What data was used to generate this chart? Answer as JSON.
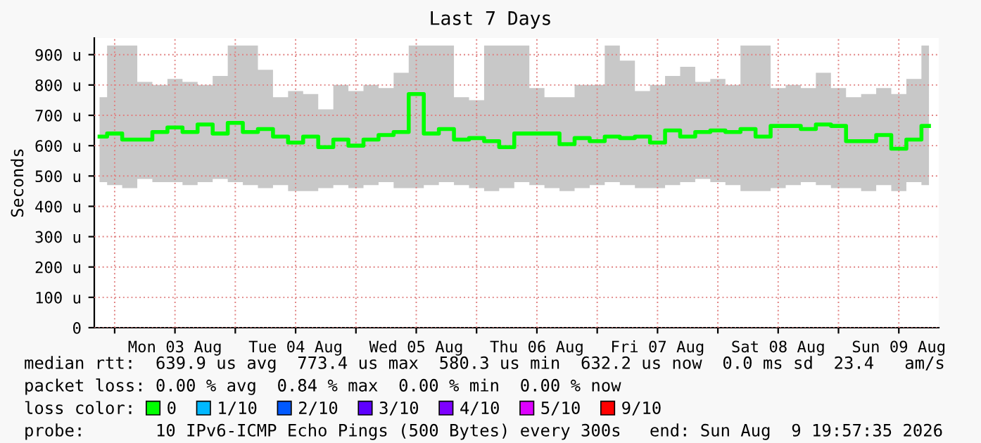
{
  "chart_data": {
    "type": "step",
    "title": "Last 7 Days",
    "ylabel": "Seconds",
    "x": [
      "2026-08-02T21:00",
      "2026-08-03T00:00",
      "2026-08-03T03:00",
      "2026-08-03T06:00",
      "2026-08-03T09:00",
      "2026-08-03T12:00",
      "2026-08-03T15:00",
      "2026-08-03T18:00",
      "2026-08-03T21:00",
      "2026-08-04T00:00",
      "2026-08-04T03:00",
      "2026-08-04T06:00",
      "2026-08-04T09:00",
      "2026-08-04T12:00",
      "2026-08-04T15:00",
      "2026-08-04T18:00",
      "2026-08-04T21:00",
      "2026-08-05T00:00",
      "2026-08-05T03:00",
      "2026-08-05T06:00",
      "2026-08-05T09:00",
      "2026-08-05T12:00",
      "2026-08-05T15:00",
      "2026-08-05T18:00",
      "2026-08-05T21:00",
      "2026-08-06T00:00",
      "2026-08-06T03:00",
      "2026-08-06T06:00",
      "2026-08-06T09:00",
      "2026-08-06T12:00",
      "2026-08-06T15:00",
      "2026-08-06T18:00",
      "2026-08-06T21:00",
      "2026-08-07T00:00",
      "2026-08-07T03:00",
      "2026-08-07T06:00",
      "2026-08-07T09:00",
      "2026-08-07T12:00",
      "2026-08-07T15:00",
      "2026-08-07T18:00",
      "2026-08-07T21:00",
      "2026-08-08T00:00",
      "2026-08-08T03:00",
      "2026-08-08T06:00",
      "2026-08-08T09:00",
      "2026-08-08T12:00",
      "2026-08-08T15:00",
      "2026-08-08T18:00",
      "2026-08-08T21:00",
      "2026-08-09T00:00",
      "2026-08-09T03:00",
      "2026-08-09T06:00",
      "2026-08-09T09:00",
      "2026-08-09T12:00",
      "2026-08-09T15:00",
      "2026-08-09T18:00"
    ],
    "series": [
      {
        "name": "0",
        "color": "#00ff00",
        "values": [
          630,
          640,
          620,
          620,
          645,
          660,
          645,
          670,
          640,
          675,
          645,
          655,
          630,
          610,
          630,
          595,
          620,
          600,
          620,
          635,
          645,
          770,
          640,
          655,
          620,
          625,
          615,
          595,
          640,
          640,
          640,
          605,
          625,
          615,
          630,
          625,
          630,
          610,
          650,
          630,
          645,
          650,
          645,
          655,
          630,
          665,
          665,
          655,
          670,
          665,
          615,
          615,
          635,
          590,
          620,
          665
        ],
        "lower": [
          480,
          470,
          460,
          490,
          480,
          480,
          470,
          480,
          490,
          480,
          470,
          460,
          470,
          450,
          450,
          460,
          470,
          460,
          470,
          480,
          460,
          460,
          470,
          480,
          470,
          460,
          450,
          460,
          480,
          470,
          460,
          450,
          460,
          470,
          480,
          470,
          460,
          460,
          470,
          480,
          490,
          480,
          470,
          450,
          450,
          460,
          470,
          480,
          470,
          460,
          460,
          450,
          470,
          450,
          480,
          470
        ],
        "upper": [
          760,
          930,
          930,
          810,
          800,
          820,
          810,
          800,
          830,
          930,
          930,
          850,
          760,
          780,
          770,
          720,
          800,
          780,
          800,
          790,
          840,
          930,
          930,
          930,
          760,
          750,
          930,
          930,
          930,
          790,
          760,
          760,
          800,
          800,
          930,
          880,
          780,
          800,
          830,
          860,
          810,
          820,
          800,
          930,
          930,
          790,
          800,
          790,
          840,
          790,
          760,
          770,
          790,
          770,
          820,
          930
        ]
      },
      {
        "name": "1/10",
        "color": "#00b8ff",
        "values": [
          null,
          null,
          null,
          null,
          null,
          null,
          null,
          null,
          null,
          null,
          null,
          null,
          null,
          null,
          null,
          null,
          null,
          null,
          null,
          null,
          null,
          null,
          null,
          null,
          null,
          null,
          null,
          null,
          null,
          null,
          null,
          null,
          null,
          null,
          null,
          null,
          null,
          null,
          null,
          null,
          null,
          null,
          null,
          null,
          null,
          null,
          null,
          null,
          null,
          null,
          null,
          null,
          null,
          null,
          null,
          null
        ]
      },
      {
        "name": "2/10",
        "color": "#0059ff",
        "values": [
          null,
          null,
          null,
          null,
          null,
          null,
          null,
          null,
          null,
          null,
          null,
          null,
          null,
          null,
          null,
          null,
          null,
          null,
          null,
          null,
          null,
          null,
          null,
          null,
          null,
          null,
          null,
          null,
          null,
          null,
          null,
          null,
          null,
          null,
          null,
          null,
          null,
          null,
          null,
          null,
          null,
          null,
          null,
          null,
          null,
          null,
          null,
          null,
          null,
          null,
          null,
          null,
          null,
          null,
          null,
          null
        ]
      },
      {
        "name": "3/10",
        "color": "#5e00ff",
        "values": [
          null,
          null,
          null,
          null,
          null,
          null,
          null,
          null,
          null,
          null,
          null,
          null,
          null,
          null,
          null,
          null,
          null,
          null,
          null,
          null,
          null,
          null,
          null,
          null,
          null,
          null,
          null,
          null,
          null,
          null,
          null,
          null,
          null,
          null,
          null,
          null,
          null,
          null,
          null,
          null,
          null,
          null,
          null,
          null,
          null,
          null,
          null,
          null,
          null,
          null,
          null,
          null,
          null,
          null,
          null,
          null
        ]
      },
      {
        "name": "4/10",
        "color": "#7e00ff",
        "values": [
          null,
          null,
          null,
          null,
          null,
          null,
          null,
          null,
          null,
          null,
          null,
          null,
          null,
          null,
          null,
          null,
          null,
          null,
          null,
          null,
          null,
          null,
          null,
          null,
          null,
          null,
          null,
          null,
          null,
          null,
          null,
          null,
          null,
          null,
          null,
          null,
          null,
          null,
          null,
          null,
          null,
          null,
          null,
          null,
          null,
          null,
          null,
          null,
          null,
          null,
          null,
          null,
          null,
          null,
          null,
          null
        ]
      },
      {
        "name": "5/10",
        "color": "#dd00ff",
        "values": [
          null,
          null,
          null,
          null,
          null,
          null,
          null,
          null,
          null,
          null,
          null,
          null,
          null,
          null,
          null,
          null,
          null,
          null,
          null,
          null,
          null,
          null,
          null,
          null,
          null,
          null,
          null,
          null,
          null,
          null,
          null,
          null,
          null,
          null,
          null,
          null,
          null,
          null,
          null,
          null,
          null,
          null,
          null,
          null,
          null,
          null,
          null,
          null,
          null,
          null,
          null,
          null,
          null,
          null,
          null,
          null
        ]
      },
      {
        "name": "9/10",
        "color": "#ff0000",
        "values": [
          null,
          null,
          null,
          null,
          null,
          null,
          null,
          null,
          null,
          null,
          null,
          null,
          null,
          null,
          null,
          null,
          null,
          null,
          null,
          null,
          null,
          null,
          null,
          null,
          null,
          null,
          null,
          null,
          null,
          null,
          null,
          null,
          null,
          null,
          null,
          null,
          null,
          null,
          null,
          null,
          null,
          null,
          null,
          null,
          null,
          null,
          null,
          null,
          null,
          null,
          null,
          null,
          null,
          null,
          null,
          null
        ]
      }
    ],
    "legend_title": "loss color:",
    "legend": "bottom",
    "xlim": [
      "2026-08-02T19:57",
      "2026-08-09T19:57"
    ],
    "xticks": [
      {
        "value": "2026-08-03T00:00",
        "label": null
      },
      {
        "value": "2026-08-03T12:00",
        "label": "Mon 03 Aug"
      },
      {
        "value": "2026-08-04T00:00",
        "label": null
      },
      {
        "value": "2026-08-04T12:00",
        "label": "Tue 04 Aug"
      },
      {
        "value": "2026-08-05T00:00",
        "label": null
      },
      {
        "value": "2026-08-05T12:00",
        "label": "Wed 05 Aug"
      },
      {
        "value": "2026-08-06T00:00",
        "label": null
      },
      {
        "value": "2026-08-06T12:00",
        "label": "Thu 06 Aug"
      },
      {
        "value": "2026-08-07T00:00",
        "label": null
      },
      {
        "value": "2026-08-07T12:00",
        "label": "Fri 07 Aug"
      },
      {
        "value": "2026-08-08T00:00",
        "label": null
      },
      {
        "value": "2026-08-08T12:00",
        "label": "Sat 08 Aug"
      },
      {
        "value": "2026-08-09T00:00",
        "label": null
      },
      {
        "value": "2026-08-09T12:00",
        "label": "Sun 09 Aug"
      }
    ],
    "ylim": [
      0,
      955
    ],
    "yticks": [
      0,
      {
        "value": 100,
        "label": "100 u"
      },
      {
        "value": 200,
        "label": "200 u"
      },
      {
        "value": 300,
        "label": "300 u"
      },
      {
        "value": 400,
        "label": "400 u"
      },
      {
        "value": 500,
        "label": "500 u"
      },
      {
        "value": 600,
        "label": "600 u"
      },
      {
        "value": 700,
        "label": "700 u"
      },
      {
        "value": 800,
        "label": "800 u"
      },
      {
        "value": 900,
        "label": "900 u"
      }
    ],
    "grid": true,
    "annotations": [
      "median rtt:  639.9 us avg  773.4 us max  580.3 us min  632.2 us now  0.0 ms sd  23.4   am/s",
      "packet loss: 0.00 % avg  0.84 % max  0.00 % min  0.00 % now",
      "probe:       10 IPv6-ICMP Echo Pings (500 Bytes) every 300s",
      "end: Sun Aug  9 19:57:35 2026"
    ]
  }
}
